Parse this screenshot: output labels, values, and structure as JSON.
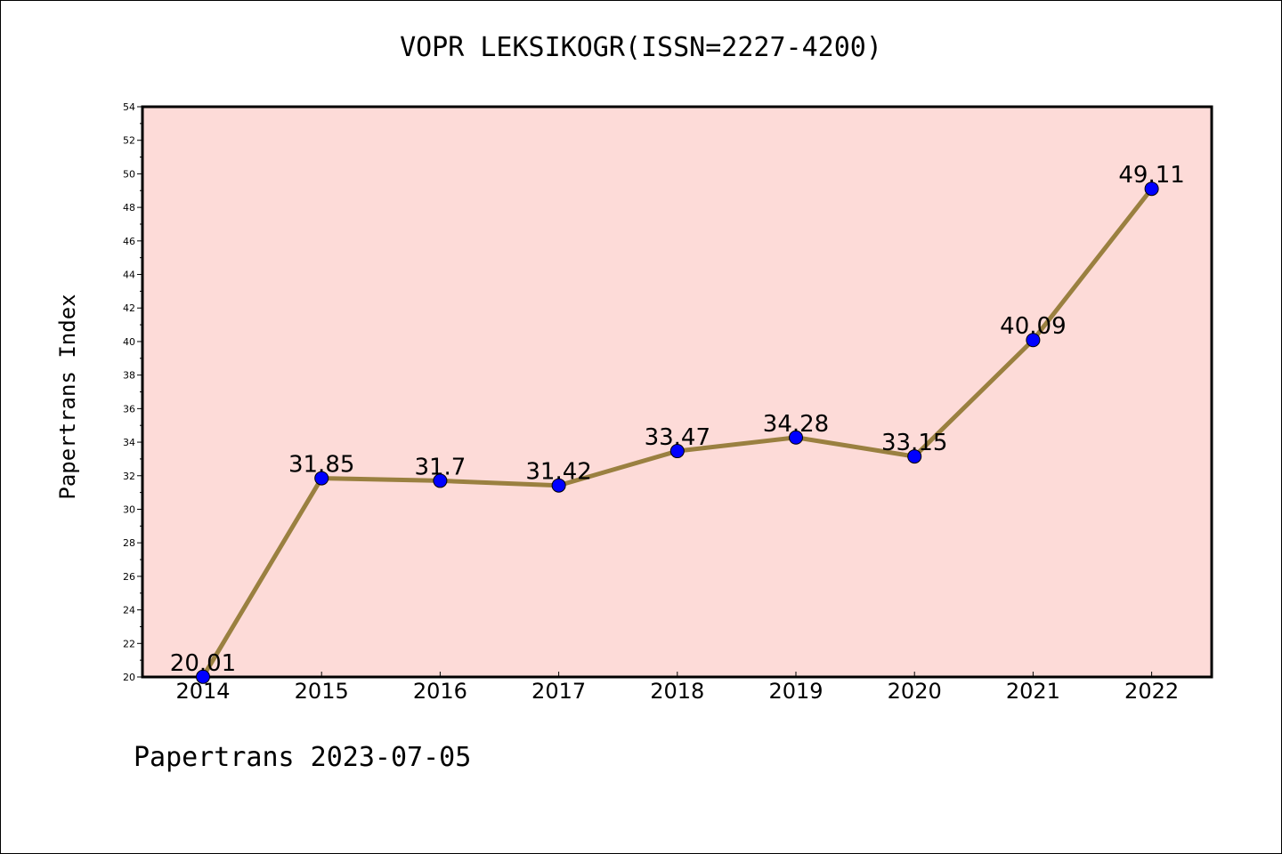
{
  "chart_data": {
    "type": "line",
    "title": "VOPR LEKSIKOGR(ISSN=2227-4200)",
    "ylabel": "Papertrans Index",
    "xlabel": "",
    "categories": [
      "2014",
      "2015",
      "2016",
      "2017",
      "2018",
      "2019",
      "2020",
      "2021",
      "2022"
    ],
    "values": [
      20.01,
      31.85,
      31.7,
      31.42,
      33.47,
      34.28,
      33.15,
      40.09,
      49.11
    ],
    "value_labels": [
      "20.01",
      "31.85",
      "31.7",
      "31.42",
      "33.47",
      "34.28",
      "33.15",
      "40.09",
      "49.11"
    ],
    "ylim": [
      20,
      54
    ],
    "yticks": [
      20,
      22,
      24,
      26,
      28,
      30,
      32,
      34,
      36,
      38,
      40,
      42,
      44,
      46,
      48,
      50,
      52,
      54
    ],
    "grid": false,
    "plot_background": "#FDDBD8",
    "line_color": "#9A8040",
    "marker_color": "#0000FF"
  },
  "footer": "Papertrans 2023-07-05"
}
